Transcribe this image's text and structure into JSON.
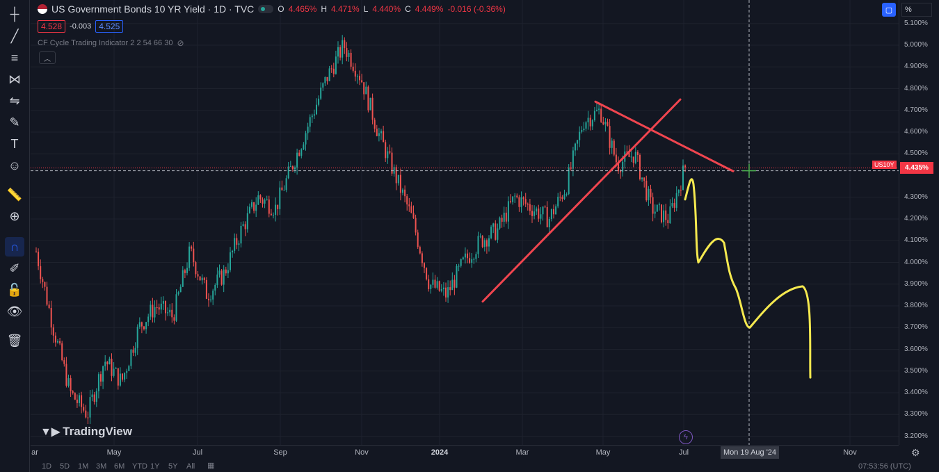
{
  "header": {
    "title": "US Government Bonds 10 YR Yield · 1D · TVC",
    "open_label": "O",
    "open": "4.465%",
    "high_label": "H",
    "high": "4.471%",
    "low_label": "L",
    "low": "4.440%",
    "close_label": "C",
    "close": "4.449%",
    "change": "-0.016 (-0.36%)",
    "bid": "4.528",
    "spread": "-0.003",
    "ask": "4.525",
    "indicator": "CF Cycle Trading Indicator 2 2 54 66 30"
  },
  "price_axis": {
    "unit_button": "%",
    "current_price": "4.435%",
    "symbol_tag": "US10Y",
    "ticks": [
      "5.100%",
      "5.000%",
      "4.900%",
      "4.800%",
      "4.700%",
      "4.600%",
      "4.500%",
      "4.300%",
      "4.200%",
      "4.100%",
      "4.000%",
      "3.900%",
      "3.800%",
      "3.700%",
      "3.600%",
      "3.500%",
      "3.400%",
      "3.300%",
      "3.200%"
    ]
  },
  "time_axis": {
    "labels": [
      "ar",
      "May",
      "Jul",
      "Sep",
      "Nov",
      "2024",
      "Mar",
      "May",
      "Jul",
      "Nov"
    ],
    "cursor_label": "Mon 19 Aug '24"
  },
  "bottom_bar": {
    "ranges": [
      "1D",
      "5D",
      "1M",
      "3M",
      "6M",
      "YTD",
      "1Y",
      "5Y",
      "All"
    ],
    "clock": "07:53:56 (UTC)"
  },
  "watermark": "TradingView",
  "colors": {
    "up": "#26a69a",
    "down": "#ef5350",
    "trendline": "#f0454f",
    "projection": "#f5e94f",
    "background": "#131722",
    "accent": "#2962ff"
  },
  "toolbar_icons": [
    "crosshair-icon",
    "trendline-icon",
    "fib-icon",
    "pattern-icon",
    "forecast-icon",
    "brush-icon",
    "text-icon",
    "emoji-icon",
    "ruler-icon",
    "zoom-in-icon",
    "magnet-icon",
    "lock-drawing-icon",
    "lock-icon",
    "eye-icon",
    "trash-icon"
  ],
  "chart_data": {
    "type": "candlestick",
    "title": "US Government Bonds 10 YR Yield · 1D · TVC",
    "ylim": [
      3.15,
      5.13
    ],
    "series": [
      {
        "name": "US10Y",
        "x": [
          "2023-03",
          "2023-03",
          "2023-04",
          "2023-04",
          "2023-04",
          "2023-05",
          "2023-05",
          "2023-06",
          "2023-06",
          "2023-07",
          "2023-07",
          "2023-07",
          "2023-08",
          "2023-08",
          "2023-09",
          "2023-09",
          "2023-09",
          "2023-10",
          "2023-10",
          "2023-10",
          "2023-11",
          "2023-11",
          "2023-11",
          "2023-12",
          "2023-12",
          "2024-01",
          "2024-01",
          "2024-02",
          "2024-02",
          "2024-03",
          "2024-03",
          "2024-04",
          "2024-04",
          "2024-04",
          "2024-05",
          "2024-05",
          "2024-06",
          "2024-06",
          "2024-07"
        ],
        "values": [
          4.05,
          3.7,
          3.4,
          3.3,
          3.55,
          3.45,
          3.7,
          3.8,
          3.75,
          4.05,
          3.85,
          3.95,
          4.15,
          4.3,
          4.25,
          4.45,
          4.65,
          4.85,
          5.0,
          4.85,
          4.6,
          4.4,
          4.2,
          3.9,
          3.85,
          4.0,
          4.1,
          4.15,
          4.3,
          4.25,
          4.2,
          4.35,
          4.65,
          4.7,
          4.45,
          4.5,
          4.25,
          4.2,
          4.45
        ]
      }
    ],
    "annotations": {
      "support_line": [
        [
          "2024-02-01",
          3.82
        ],
        [
          "2024-06-30",
          4.75
        ]
      ],
      "resistance_line": [
        [
          "2024-04-25",
          4.74
        ],
        [
          "2024-08-05",
          4.42
        ]
      ],
      "current_price_line": 4.435,
      "projection": [
        [
          4.39,
          "2024-07"
        ],
        [
          4.0,
          "2024-07"
        ],
        [
          4.1,
          "2024-08"
        ],
        [
          3.9,
          "2024-08"
        ],
        [
          3.7,
          "2024-08"
        ],
        [
          3.88,
          "2024-09"
        ],
        [
          3.47,
          "2024-09"
        ]
      ]
    }
  }
}
